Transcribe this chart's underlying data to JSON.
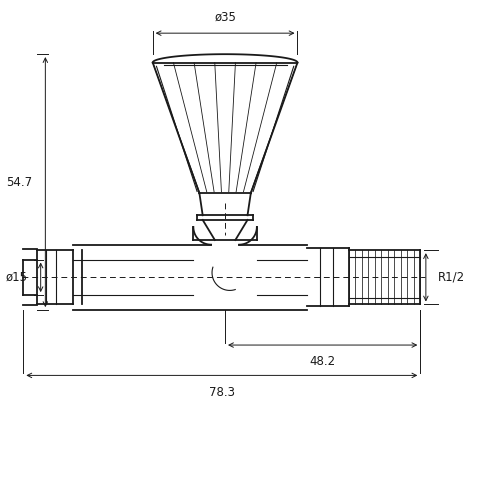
{
  "bg_color": "#ffffff",
  "line_color": "#1a1a1a",
  "dim_color": "#1a1a1a",
  "fig_width": 4.8,
  "fig_height": 4.8,
  "dpi": 100,
  "annotations": {
    "diameter_35": "ø35",
    "height_54_7": "54.7",
    "diameter_15": "ø15",
    "length_48_2": "48.2",
    "length_78_3": "78.3",
    "r_half": "R1/2"
  }
}
